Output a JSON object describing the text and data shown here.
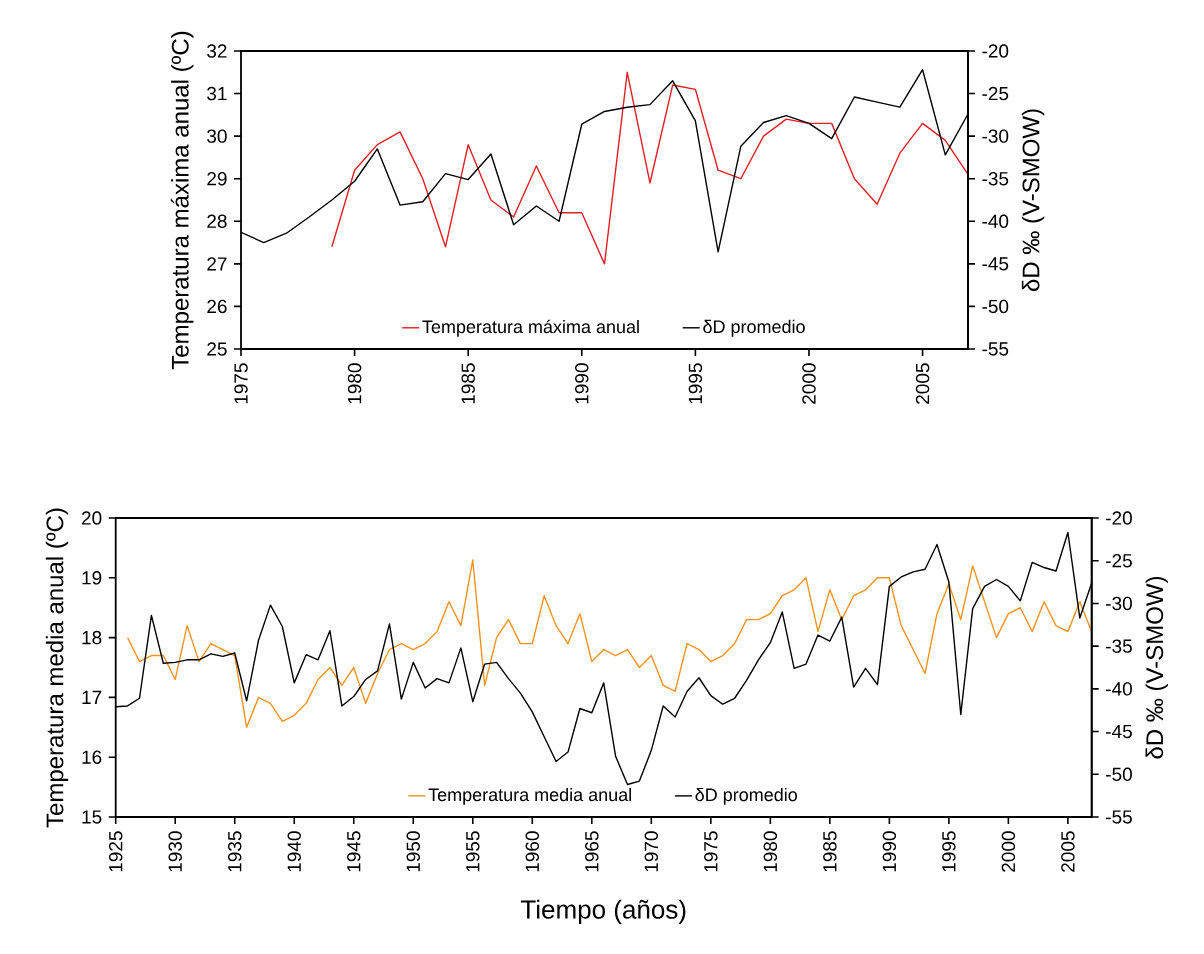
{
  "chart_data": [
    {
      "type": "line",
      "ylabel": "Temperatura máxima anual (ºC)",
      "y2label": "δD ‰ (V-SMOW)",
      "x": [
        1975,
        1976,
        1977,
        1978,
        1979,
        1980,
        1981,
        1982,
        1983,
        1984,
        1985,
        1986,
        1987,
        1988,
        1989,
        1990,
        1991,
        1992,
        1993,
        1994,
        1995,
        1996,
        1997,
        1998,
        1999,
        2000,
        2001,
        2002,
        2003,
        2004,
        2005,
        2006,
        2007
      ],
      "series": [
        {
          "name": "Temperatura máxima anual",
          "color": "#e41e26",
          "x": [
            1979,
            1980,
            1981,
            1982,
            1983,
            1984,
            1985,
            1986,
            1987,
            1988,
            1989,
            1990,
            1991,
            1992,
            1993,
            1994,
            1995,
            1996,
            1997,
            1998,
            1999,
            2000,
            2001,
            2002,
            2003,
            2004,
            2005,
            2006,
            2007
          ],
          "values": [
            27.4,
            29.2,
            29.8,
            30.1,
            29.0,
            27.4,
            29.8,
            28.5,
            28.1,
            29.3,
            28.2,
            28.2,
            27.0,
            31.5,
            28.9,
            31.2,
            31.1,
            29.2,
            29.0,
            30.0,
            30.4,
            30.3,
            30.3,
            29.0,
            28.4,
            29.6,
            30.3,
            29.9,
            29.1
          ]
        },
        {
          "name": "δD promedio",
          "color": "#000000",
          "axis": "y2",
          "values": [
            -41.3,
            -42.5,
            -41.4,
            -39.5,
            -37.5,
            -35.3,
            -31.5,
            -38.1,
            -37.7,
            -34.4,
            -35.1,
            -32.1,
            -40.4,
            -38.2,
            -40.0,
            -28.6,
            -27.1,
            -26.6,
            -26.3,
            -23.5,
            -28.2,
            -43.6,
            -31.2,
            -28.4,
            -27.6,
            -28.5,
            -30.3,
            -25.4,
            -26.0,
            -26.6,
            -22.2,
            -32.2,
            -27.4
          ]
        }
      ],
      "xlim": [
        1975,
        2007
      ],
      "xticks": [
        1975,
        1980,
        1985,
        1990,
        1995,
        2000,
        2005
      ],
      "ylim": [
        25,
        32
      ],
      "yticks": [
        25,
        26,
        27,
        28,
        29,
        30,
        31,
        32
      ],
      "y2lim": [
        -55,
        -20
      ],
      "y2ticks": [
        -55,
        -50,
        -45,
        -40,
        -35,
        -30,
        -25,
        -20
      ],
      "legend": "bottom"
    },
    {
      "type": "line",
      "xlabel": "Tiempo (años)",
      "ylabel": "Temperatura media anual (ºC)",
      "y2label": "δD ‰ (V-SMOW)",
      "x": [
        1925,
        1926,
        1927,
        1928,
        1929,
        1930,
        1931,
        1932,
        1933,
        1934,
        1935,
        1936,
        1937,
        1938,
        1939,
        1940,
        1941,
        1942,
        1943,
        1944,
        1945,
        1946,
        1947,
        1948,
        1949,
        1950,
        1951,
        1952,
        1953,
        1954,
        1955,
        1956,
        1957,
        1958,
        1959,
        1960,
        1961,
        1962,
        1963,
        1964,
        1965,
        1966,
        1967,
        1968,
        1969,
        1970,
        1971,
        1972,
        1973,
        1974,
        1975,
        1976,
        1977,
        1978,
        1979,
        1980,
        1981,
        1982,
        1983,
        1984,
        1985,
        1986,
        1987,
        1988,
        1989,
        1990,
        1991,
        1992,
        1993,
        1994,
        1995,
        1996,
        1997,
        1998,
        1999,
        2000,
        2001,
        2002,
        2003,
        2004,
        2005,
        2006,
        2007
      ],
      "series": [
        {
          "name": "Temperatura media anual",
          "color": "#f7941d",
          "x": [
            1926,
            1927,
            1928,
            1929,
            1930,
            1931,
            1932,
            1933,
            1934,
            1935,
            1936,
            1937,
            1938,
            1939,
            1940,
            1941,
            1942,
            1943,
            1944,
            1945,
            1946,
            1947,
            1948,
            1949,
            1950,
            1951,
            1952,
            1953,
            1954,
            1955,
            1956,
            1957,
            1958,
            1959,
            1960,
            1961,
            1962,
            1963,
            1964,
            1965,
            1966,
            1967,
            1968,
            1969,
            1970,
            1971,
            1972,
            1973,
            1974,
            1975,
            1976,
            1977,
            1978,
            1979,
            1980,
            1981,
            1982,
            1983,
            1984,
            1985,
            1986,
            1987,
            1988,
            1989,
            1990,
            1991,
            1992,
            1993,
            1994,
            1995,
            1996,
            1997,
            1998,
            1999,
            2000,
            2001,
            2002,
            2003,
            2004,
            2005,
            2006,
            2007
          ],
          "values": [
            18.0,
            17.6,
            17.7,
            17.7,
            17.3,
            18.2,
            17.6,
            17.9,
            17.8,
            17.7,
            16.5,
            17.0,
            16.9,
            16.6,
            16.7,
            16.9,
            17.3,
            17.5,
            17.2,
            17.5,
            16.9,
            17.4,
            17.8,
            17.9,
            17.8,
            17.9,
            18.1,
            18.6,
            18.2,
            19.3,
            17.2,
            18.0,
            18.3,
            17.9,
            17.9,
            18.7,
            18.2,
            17.9,
            18.4,
            17.6,
            17.8,
            17.7,
            17.8,
            17.5,
            17.7,
            17.2,
            17.1,
            17.9,
            17.8,
            17.6,
            17.7,
            17.9,
            18.3,
            18.3,
            18.4,
            18.7,
            18.8,
            19.0,
            18.1,
            18.8,
            18.3,
            18.7,
            18.8,
            19.0,
            19.0,
            18.2,
            17.8,
            17.4,
            18.4,
            18.9,
            18.3,
            19.2,
            18.6,
            18.0,
            18.4,
            18.5,
            18.1,
            18.6,
            18.2,
            18.1,
            18.6,
            18.1
          ]
        },
        {
          "name": "δD promedio",
          "color": "#000000",
          "axis": "y2",
          "values": [
            -42.1,
            -42.0,
            -41.1,
            -31.4,
            -37.0,
            -36.9,
            -36.6,
            -36.6,
            -35.9,
            -36.2,
            -35.8,
            -41.4,
            -34.3,
            -30.2,
            -32.7,
            -39.3,
            -36.0,
            -36.6,
            -33.2,
            -42.0,
            -40.9,
            -38.9,
            -37.9,
            -32.4,
            -41.2,
            -36.9,
            -39.9,
            -38.8,
            -39.3,
            -35.2,
            -41.5,
            -37.1,
            -36.9,
            -38.8,
            -40.5,
            -42.7,
            -45.6,
            -48.5,
            -47.4,
            -42.3,
            -42.8,
            -39.3,
            -47.9,
            -51.2,
            -50.8,
            -47.2,
            -42.0,
            -43.3,
            -40.3,
            -38.7,
            -40.8,
            -41.8,
            -41.1,
            -39.0,
            -36.6,
            -34.6,
            -31.0,
            -37.6,
            -37.1,
            -33.7,
            -34.4,
            -31.6,
            -39.8,
            -37.6,
            -39.5,
            -28.0,
            -26.9,
            -26.3,
            -26.0,
            -23.1,
            -27.5,
            -43.0,
            -30.6,
            -28.0,
            -27.2,
            -28.0,
            -29.7,
            -25.2,
            -25.8,
            -26.2,
            -21.7,
            -31.7,
            -27.6
          ]
        }
      ],
      "xlim": [
        1925,
        2007
      ],
      "xticks": [
        1925,
        1930,
        1935,
        1940,
        1945,
        1950,
        1955,
        1960,
        1965,
        1970,
        1975,
        1980,
        1985,
        1990,
        1995,
        2000,
        2005
      ],
      "ylim": [
        15,
        20
      ],
      "yticks": [
        15,
        16,
        17,
        18,
        19,
        20
      ],
      "y2lim": [
        -55,
        -20
      ],
      "y2ticks": [
        -55,
        -50,
        -45,
        -40,
        -35,
        -30,
        -25,
        -20
      ],
      "legend": "bottom"
    }
  ]
}
